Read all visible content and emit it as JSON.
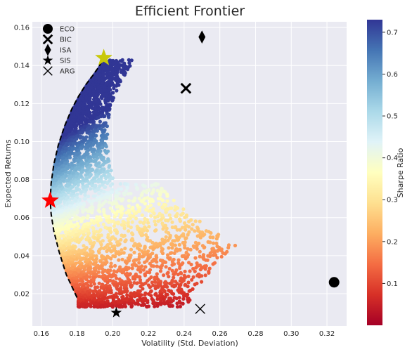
{
  "chart_data": {
    "type": "scatter",
    "title": "Efficient Frontier",
    "xlabel": "Volatility (Std. Deviation)",
    "ylabel": "Expected Returns",
    "xlim": [
      0.155,
      0.331
    ],
    "ylim": [
      0.003,
      0.163
    ],
    "xticks": [
      0.16,
      0.18,
      0.2,
      0.22,
      0.24,
      0.26,
      0.28,
      0.3,
      0.32
    ],
    "xtick_labels": [
      "0.16",
      "0.18",
      "0.20",
      "0.22",
      "0.24",
      "0.26",
      "0.28",
      "0.30",
      "0.32"
    ],
    "yticks": [
      0.02,
      0.04,
      0.06,
      0.08,
      0.1,
      0.12,
      0.14,
      0.16
    ],
    "ytick_labels": [
      "0.02",
      "0.04",
      "0.06",
      "0.08",
      "0.10",
      "0.12",
      "0.14",
      "0.16"
    ],
    "grid": true,
    "background": "#eaeaf2",
    "colorbar": {
      "label": "Sharpe Ratio",
      "min": 0.0,
      "max": 0.73,
      "ticks": [
        0.1,
        0.2,
        0.3,
        0.4,
        0.5,
        0.6,
        0.7
      ],
      "tick_labels": [
        "0.1",
        "0.2",
        "0.3",
        "0.4",
        "0.5",
        "0.6",
        "0.7"
      ],
      "colormap": "RdYlBu",
      "colors": [
        "#a50026",
        "#d73027",
        "#f46d43",
        "#fdae61",
        "#fee090",
        "#ffffbf",
        "#e0f3f8",
        "#abd9e9",
        "#74add1",
        "#4575b4",
        "#313695"
      ]
    },
    "legend_placement": "top-left",
    "assets": [
      {
        "name": "ECO",
        "marker": "circle",
        "x": 0.324,
        "y": 0.026
      },
      {
        "name": "BIC",
        "marker": "x-filled",
        "x": 0.241,
        "y": 0.128
      },
      {
        "name": "ISA",
        "marker": "thin-diamond",
        "x": 0.25,
        "y": 0.155
      },
      {
        "name": "SIS",
        "marker": "star",
        "x": 0.202,
        "y": 0.01
      },
      {
        "name": "ARG",
        "marker": "x",
        "x": 0.249,
        "y": 0.012
      }
    ],
    "min_volatility_portfolio": {
      "x": 0.165,
      "y": 0.069,
      "color": "#ff0000",
      "marker": "star"
    },
    "max_sharpe_portfolio": {
      "x": 0.195,
      "y": 0.144,
      "color": "#c8c80a",
      "marker": "star"
    },
    "efficient_frontier": {
      "style": "dashed",
      "color": "#000000",
      "x": [
        0.18,
        0.174,
        0.17,
        0.167,
        0.1655,
        0.165,
        0.1655,
        0.167,
        0.1695,
        0.173,
        0.177,
        0.181,
        0.185,
        0.189,
        0.192,
        0.195
      ],
      "y": [
        0.018,
        0.03,
        0.042,
        0.053,
        0.062,
        0.069,
        0.078,
        0.088,
        0.098,
        0.108,
        0.117,
        0.124,
        0.13,
        0.135,
        0.139,
        0.144
      ]
    },
    "simulated_portfolios": {
      "count": 4500,
      "return_range": [
        0.013,
        0.143
      ],
      "volatility_range": [
        0.165,
        0.276
      ],
      "color_by": "Sharpe Ratio"
    }
  }
}
